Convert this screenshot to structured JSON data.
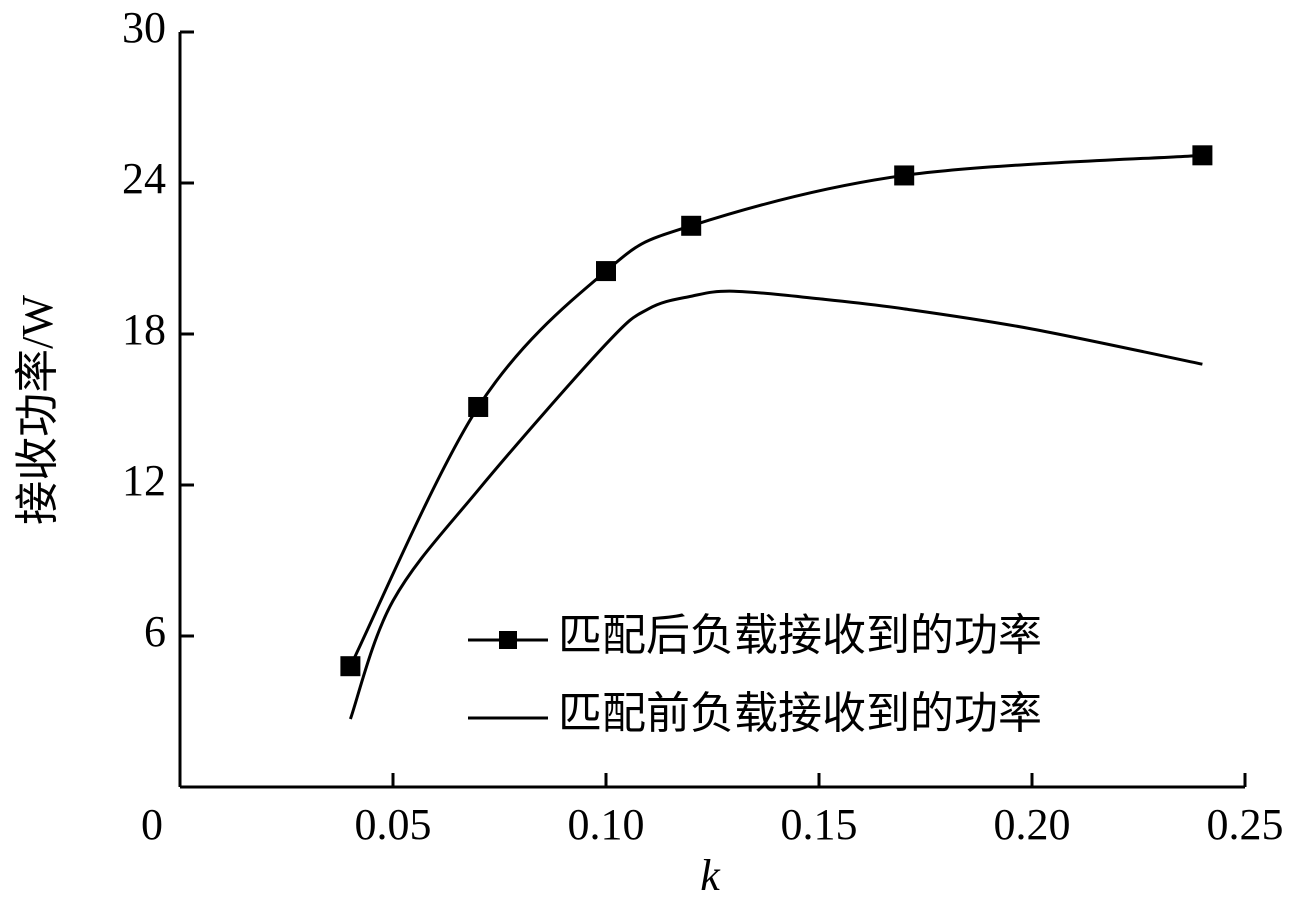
{
  "chart_data": {
    "type": "line",
    "xlabel": "k",
    "ylabel": "接收功率/W",
    "xlim": [
      0,
      0.25
    ],
    "ylim": [
      0,
      30
    ],
    "xticks": [
      0,
      {
        "value": 0.05,
        "label": "0.05"
      },
      {
        "value": 0.1,
        "label": "0.10"
      },
      {
        "value": 0.15,
        "label": "0.15"
      },
      {
        "value": 0.2,
        "label": "0.20"
      },
      {
        "value": 0.25,
        "label": "0.25"
      }
    ],
    "yticks": [
      6,
      12,
      18,
      24,
      30
    ],
    "legend": "lower right",
    "series": [
      {
        "name": "匹配后负载接收到的功率",
        "color": "#000000",
        "marker": "square",
        "x": [
          0.04,
          0.07,
          0.1,
          0.12,
          0.17,
          0.24
        ],
        "values": [
          4.8,
          15.1,
          20.5,
          22.3,
          24.3,
          25.1
        ]
      },
      {
        "name": "匹配前负载接收到的功率",
        "color": "#000000",
        "marker": "none",
        "x": [
          0.04,
          0.05,
          0.07,
          0.1,
          0.11,
          0.12,
          0.13,
          0.15,
          0.17,
          0.2,
          0.24
        ],
        "values": [
          2.7,
          7.4,
          11.8,
          17.6,
          19.0,
          19.5,
          19.7,
          19.4,
          19.0,
          18.2,
          16.8
        ]
      }
    ]
  }
}
